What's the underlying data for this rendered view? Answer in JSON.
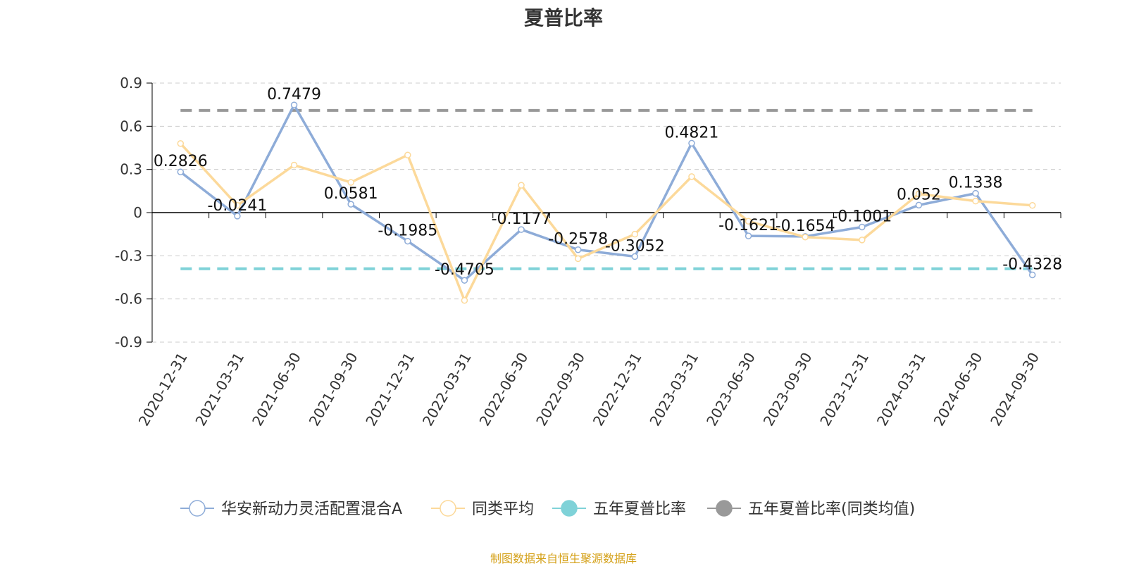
{
  "colors": {
    "fund": "#8eacd8",
    "peer_avg": "#fcd99a",
    "five_year_sharpe": "#7fd2d8",
    "five_year_sharpe_peer": "#999999",
    "axis": "#000000",
    "grid": "#cccccc",
    "source_text": "#d4a017"
  },
  "source_note": "制图数据来自恒生聚源数据库",
  "chart_data": {
    "type": "line",
    "title": "夏普比率",
    "xlabel": "",
    "ylabel": "",
    "ylim": [
      -0.9,
      0.9
    ],
    "yticks": [
      "0.9",
      "0.6",
      "0.3",
      "0",
      "-0.3",
      "-0.6",
      "-0.9"
    ],
    "ytick_values": [
      0.9,
      0.6,
      0.3,
      0,
      -0.3,
      -0.6,
      -0.9
    ],
    "grid": true,
    "legend_position": "bottom",
    "categories": [
      "2020-12-31",
      "2021-03-31",
      "2021-06-30",
      "2021-09-30",
      "2021-12-31",
      "2022-03-31",
      "2022-06-30",
      "2022-09-30",
      "2022-12-31",
      "2023-03-31",
      "2023-06-30",
      "2023-09-30",
      "2023-12-31",
      "2024-03-31",
      "2024-06-30",
      "2024-09-30"
    ],
    "series": [
      {
        "name": "华安新动力灵活配置混合A",
        "color_key": "fund",
        "labeled": true,
        "values": [
          0.2826,
          -0.0241,
          0.7479,
          0.0581,
          -0.1985,
          -0.4705,
          -0.1177,
          -0.2578,
          -0.3052,
          0.4821,
          -0.1621,
          -0.1654,
          -0.1001,
          0.052,
          0.1338,
          -0.4328
        ],
        "labels": [
          "0.2826",
          "-0.0241",
          "0.7479",
          "0.0581",
          "-0.1985",
          "-0.4705",
          "-0.1177",
          "-0.2578",
          "-0.3052",
          "0.4821",
          "-0.1621",
          "-0.1654",
          "-0.1001",
          "0.052",
          "0.1338",
          "-0.4328"
        ]
      },
      {
        "name": "同类平均",
        "color_key": "peer_avg",
        "labeled": false,
        "values": [
          0.48,
          0.05,
          0.33,
          0.21,
          0.4,
          -0.61,
          0.19,
          -0.32,
          -0.15,
          0.25,
          -0.06,
          -0.17,
          -0.19,
          0.13,
          0.08,
          0.05
        ]
      },
      {
        "name": "五年夏普比率",
        "color_key": "five_year_sharpe",
        "dashed": true,
        "constant": -0.39
      },
      {
        "name": "五年夏普比率(同类均值)",
        "color_key": "five_year_sharpe_peer",
        "dashed": true,
        "constant": 0.71
      }
    ]
  }
}
